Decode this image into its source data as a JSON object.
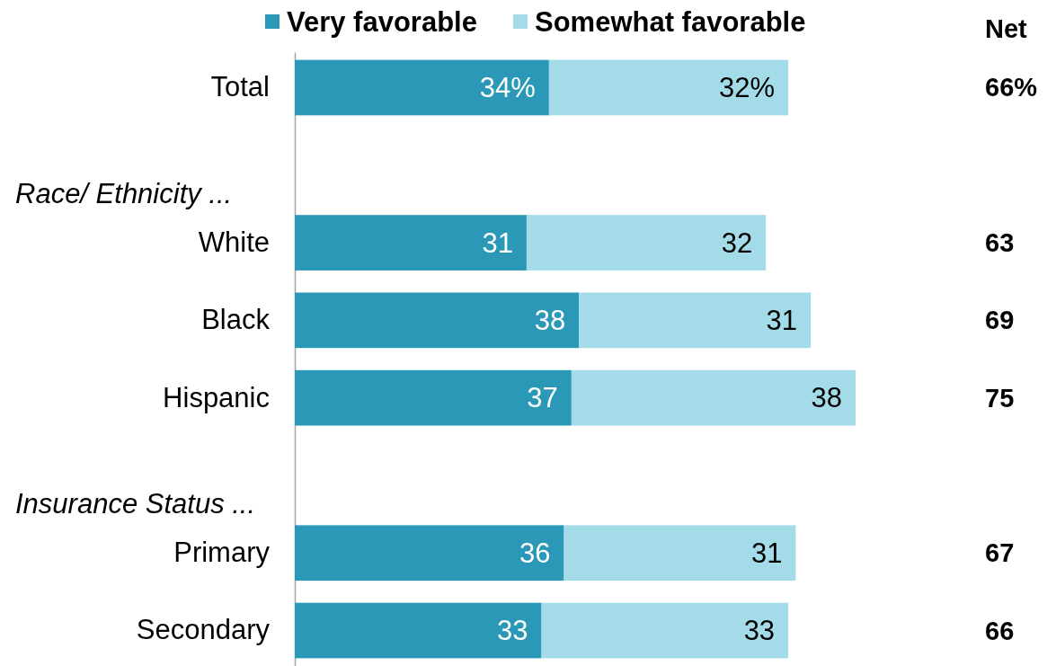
{
  "chart_data": {
    "type": "bar",
    "orientation": "horizontal",
    "stacked": true,
    "categories": [
      "Total",
      null,
      "White",
      "Black",
      "Hispanic",
      null,
      "Primary",
      "Secondary"
    ],
    "series": [
      {
        "name": "Very favorable",
        "color": "#2a98b6",
        "values": [
          34,
          null,
          31,
          38,
          37,
          null,
          36,
          33
        ],
        "value_labels": [
          "34%",
          null,
          "31",
          "38",
          "37",
          null,
          "36",
          "33"
        ]
      },
      {
        "name": "Somewhat favorable",
        "color": "#a3dbe9",
        "values": [
          32,
          null,
          32,
          31,
          38,
          null,
          31,
          33
        ],
        "value_labels": [
          "32%",
          null,
          "32",
          "31",
          "38",
          null,
          "31",
          "33"
        ]
      }
    ],
    "annotations": [
      "Race/ Ethnicity ...",
      "Insurance Status ...",
      "Net",
      "66%",
      "63",
      "69",
      "75",
      "67",
      "66"
    ],
    "xlim": [
      0,
      75
    ],
    "tick_labels": "y",
    "legend": "top"
  }
}
